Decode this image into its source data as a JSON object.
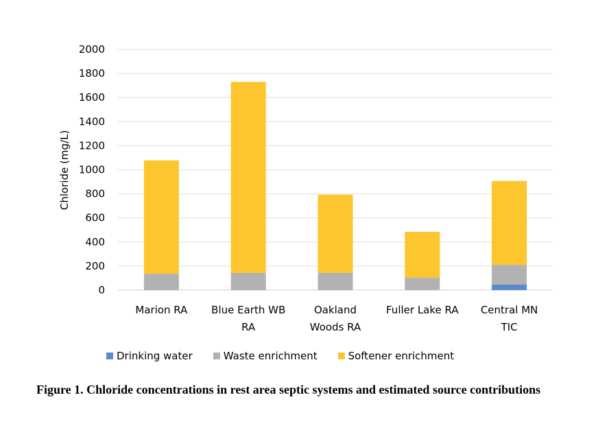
{
  "chart_data": {
    "type": "bar",
    "stacked": true,
    "title": "",
    "xlabel": "",
    "ylabel": "Chloride (mg/L)",
    "ylim": [
      0,
      2000
    ],
    "yticks": [
      0,
      200,
      400,
      600,
      800,
      1000,
      1200,
      1400,
      1600,
      1800,
      2000
    ],
    "grid": true,
    "legend_position": "bottom",
    "categories": [
      [
        "Marion RA"
      ],
      [
        "Blue Earth WB",
        "RA"
      ],
      [
        "Oakland",
        "Woods RA"
      ],
      [
        "Fuller Lake RA"
      ],
      [
        "Central MN",
        "TIC"
      ]
    ],
    "series": [
      {
        "name": "Drinking water",
        "color": "#5B8ACB",
        "values": [
          0,
          0,
          0,
          0,
          47
        ]
      },
      {
        "name": "Waste enrichment",
        "color": "#B2B2B2",
        "values": [
          136,
          143,
          144,
          104,
          163
        ]
      },
      {
        "name": "Softener enrichment",
        "color": "#FEC62E",
        "values": [
          942,
          1587,
          649,
          380,
          697
        ]
      }
    ]
  },
  "caption": "Figure 1. Chloride concentrations in rest area septic systems and estimated source contributions"
}
